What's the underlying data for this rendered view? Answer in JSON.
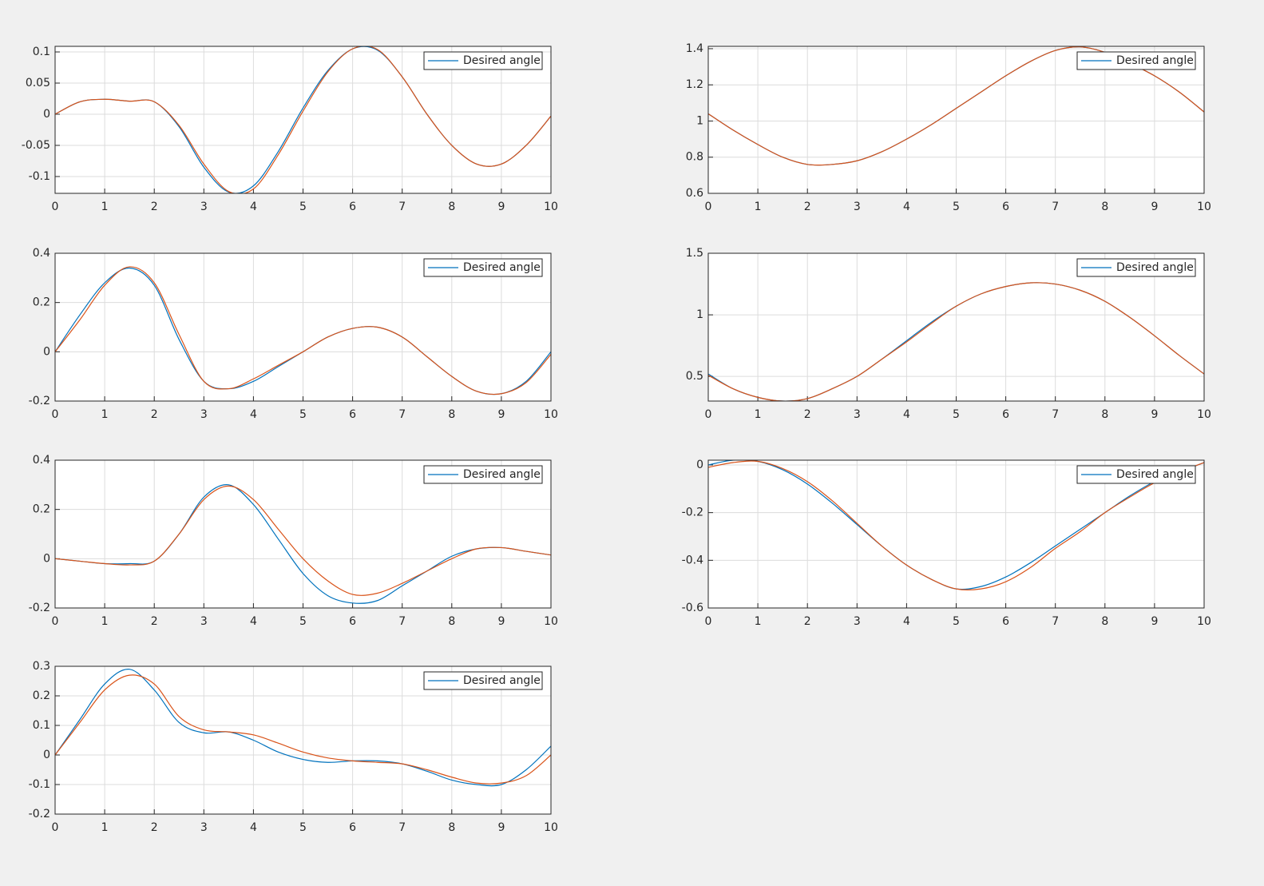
{
  "chart_data": [
    {
      "type": "line",
      "x": [
        0,
        0.5,
        1,
        1.5,
        2,
        2.5,
        3,
        3.5,
        4,
        4.5,
        5,
        5.5,
        6,
        6.5,
        7,
        7.5,
        8,
        8.5,
        9,
        9.5,
        10
      ],
      "xlim": [
        0,
        10
      ],
      "xticks": [
        0,
        1,
        2,
        3,
        4,
        5,
        6,
        7,
        8,
        9,
        10
      ],
      "ylim": [
        -0.127,
        0.109
      ],
      "yticks": [
        -0.1,
        -0.05,
        0,
        0.05,
        0.1
      ],
      "grid": true,
      "legend": "top-right",
      "series": [
        {
          "name": "Desired angle",
          "color": "#0072bd",
          "values": [
            0,
            0.02,
            0.024,
            0.021,
            0.02,
            -0.02,
            -0.085,
            -0.125,
            -0.115,
            -0.06,
            0.01,
            0.07,
            0.105,
            0.103,
            0.06,
            0.0,
            -0.05,
            -0.08,
            -0.08,
            -0.05,
            -0.003
          ]
        },
        {
          "color": "#d95319",
          "values": [
            0,
            0.02,
            0.024,
            0.021,
            0.02,
            -0.018,
            -0.08,
            -0.124,
            -0.12,
            -0.065,
            0.005,
            0.068,
            0.105,
            0.104,
            0.06,
            0.0,
            -0.05,
            -0.08,
            -0.08,
            -0.05,
            -0.003
          ]
        }
      ]
    },
    {
      "type": "line",
      "x": [
        0,
        0.5,
        1,
        1.5,
        2,
        2.5,
        3,
        3.5,
        4,
        4.5,
        5,
        5.5,
        6,
        6.5,
        7,
        7.5,
        8,
        8.5,
        9,
        9.5,
        10
      ],
      "xlim": [
        0,
        10
      ],
      "xticks": [
        0,
        1,
        2,
        3,
        4,
        5,
        6,
        7,
        8,
        9,
        10
      ],
      "ylim": [
        0.6,
        1.413
      ],
      "yticks": [
        0.6,
        0.8,
        1,
        1.2,
        1.4
      ],
      "grid": true,
      "legend": "top-right",
      "series": [
        {
          "name": "Desired angle",
          "color": "#0072bd",
          "values": [
            1.04,
            0.95,
            0.87,
            0.8,
            0.76,
            0.76,
            0.78,
            0.83,
            0.9,
            0.98,
            1.07,
            1.16,
            1.25,
            1.33,
            1.39,
            1.41,
            1.38,
            1.32,
            1.25,
            1.16,
            1.05
          ]
        },
        {
          "color": "#d95319",
          "values": [
            1.04,
            0.95,
            0.87,
            0.8,
            0.76,
            0.76,
            0.78,
            0.83,
            0.9,
            0.98,
            1.07,
            1.16,
            1.25,
            1.33,
            1.39,
            1.41,
            1.38,
            1.32,
            1.25,
            1.16,
            1.05
          ]
        }
      ]
    },
    {
      "type": "line",
      "x": [
        0,
        0.5,
        1,
        1.5,
        2,
        2.5,
        3,
        3.5,
        4,
        4.5,
        5,
        5.5,
        6,
        6.5,
        7,
        7.5,
        8,
        8.5,
        9,
        9.5,
        10
      ],
      "xlim": [
        0,
        10
      ],
      "xticks": [
        0,
        1,
        2,
        3,
        4,
        5,
        6,
        7,
        8,
        9,
        10
      ],
      "ylim": [
        -0.2,
        0.4
      ],
      "yticks": [
        -0.2,
        0,
        0.2,
        0.4
      ],
      "grid": true,
      "legend": "top-right",
      "series": [
        {
          "name": "Desired angle",
          "color": "#0072bd",
          "values": [
            0,
            0.15,
            0.28,
            0.34,
            0.27,
            0.05,
            -0.12,
            -0.15,
            -0.12,
            -0.06,
            0.0,
            0.06,
            0.095,
            0.1,
            0.06,
            -0.02,
            -0.1,
            -0.16,
            -0.17,
            -0.12,
            0
          ]
        },
        {
          "color": "#d95319",
          "values": [
            0,
            0.13,
            0.27,
            0.345,
            0.28,
            0.07,
            -0.12,
            -0.15,
            -0.11,
            -0.055,
            0.0,
            0.06,
            0.095,
            0.1,
            0.06,
            -0.02,
            -0.1,
            -0.16,
            -0.17,
            -0.125,
            -0.01
          ]
        }
      ]
    },
    {
      "type": "line",
      "x": [
        0,
        0.5,
        1,
        1.5,
        2,
        2.5,
        3,
        3.5,
        4,
        4.5,
        5,
        5.5,
        6,
        6.5,
        7,
        7.5,
        8,
        8.5,
        9,
        9.5,
        10
      ],
      "xlim": [
        0,
        10
      ],
      "xticks": [
        0,
        1,
        2,
        3,
        4,
        5,
        6,
        7,
        8,
        9,
        10
      ],
      "ylim": [
        0.3,
        1.5
      ],
      "yticks": [
        0.5,
        1,
        1.5
      ],
      "grid": true,
      "legend": "top-right",
      "series": [
        {
          "name": "Desired angle",
          "color": "#0072bd",
          "values": [
            0.52,
            0.4,
            0.33,
            0.3,
            0.32,
            0.4,
            0.5,
            0.64,
            0.79,
            0.94,
            1.07,
            1.17,
            1.23,
            1.26,
            1.25,
            1.2,
            1.11,
            0.98,
            0.83,
            0.67,
            0.52
          ]
        },
        {
          "color": "#d95319",
          "values": [
            0.51,
            0.4,
            0.33,
            0.3,
            0.32,
            0.4,
            0.5,
            0.64,
            0.78,
            0.93,
            1.07,
            1.17,
            1.23,
            1.26,
            1.25,
            1.2,
            1.11,
            0.98,
            0.83,
            0.67,
            0.52
          ]
        }
      ]
    },
    {
      "type": "line",
      "x": [
        0,
        0.5,
        1,
        1.5,
        2,
        2.5,
        3,
        3.5,
        4,
        4.5,
        5,
        5.5,
        6,
        6.5,
        7,
        7.5,
        8,
        8.5,
        9,
        9.5,
        10
      ],
      "xlim": [
        0,
        10
      ],
      "xticks": [
        0,
        1,
        2,
        3,
        4,
        5,
        6,
        7,
        8,
        9,
        10
      ],
      "ylim": [
        -0.2,
        0.4
      ],
      "yticks": [
        -0.2,
        0,
        0.2,
        0.4
      ],
      "grid": true,
      "legend": "top-right",
      "series": [
        {
          "name": "Desired angle",
          "color": "#0072bd",
          "values": [
            0,
            -0.01,
            -0.02,
            -0.02,
            -0.01,
            0.1,
            0.25,
            0.3,
            0.22,
            0.08,
            -0.06,
            -0.15,
            -0.18,
            -0.17,
            -0.11,
            -0.05,
            0.01,
            0.04,
            0.045,
            0.03,
            0.015
          ]
        },
        {
          "color": "#d95319",
          "values": [
            0,
            -0.01,
            -0.02,
            -0.025,
            -0.01,
            0.1,
            0.24,
            0.295,
            0.24,
            0.12,
            0.0,
            -0.09,
            -0.145,
            -0.14,
            -0.1,
            -0.05,
            0.0,
            0.04,
            0.045,
            0.03,
            0.015
          ]
        }
      ]
    },
    {
      "type": "line",
      "x": [
        0,
        0.5,
        1,
        1.5,
        2,
        2.5,
        3,
        3.5,
        4,
        4.5,
        5,
        5.5,
        6,
        6.5,
        7,
        7.5,
        8,
        8.5,
        9,
        9.5,
        10
      ],
      "xlim": [
        0,
        10
      ],
      "xticks": [
        0,
        1,
        2,
        3,
        4,
        5,
        6,
        7,
        8,
        9,
        10
      ],
      "ylim": [
        -0.6,
        0.02
      ],
      "yticks": [
        -0.6,
        -0.4,
        -0.2,
        0
      ],
      "grid": true,
      "legend": "top-right",
      "series": [
        {
          "name": "Desired angle",
          "color": "#0072bd",
          "values": [
            0,
            0.02,
            0.015,
            -0.02,
            -0.08,
            -0.16,
            -0.25,
            -0.34,
            -0.42,
            -0.48,
            -0.52,
            -0.51,
            -0.47,
            -0.41,
            -0.34,
            -0.27,
            -0.2,
            -0.13,
            -0.07,
            -0.03,
            0.01
          ]
        },
        {
          "color": "#d95319",
          "values": [
            -0.01,
            0.01,
            0.015,
            -0.015,
            -0.07,
            -0.15,
            -0.245,
            -0.34,
            -0.42,
            -0.48,
            -0.52,
            -0.52,
            -0.49,
            -0.43,
            -0.35,
            -0.28,
            -0.2,
            -0.135,
            -0.075,
            -0.03,
            0.01
          ]
        }
      ]
    },
    {
      "type": "line",
      "x": [
        0,
        0.5,
        1,
        1.5,
        2,
        2.5,
        3,
        3.5,
        4,
        4.5,
        5,
        5.5,
        6,
        6.5,
        7,
        7.5,
        8,
        8.5,
        9,
        9.5,
        10
      ],
      "xlim": [
        0,
        10
      ],
      "xticks": [
        0,
        1,
        2,
        3,
        4,
        5,
        6,
        7,
        8,
        9,
        10
      ],
      "ylim": [
        -0.2,
        0.3
      ],
      "yticks": [
        -0.2,
        -0.1,
        0,
        0.1,
        0.2,
        0.3
      ],
      "grid": true,
      "legend": "top-right",
      "series": [
        {
          "name": "Desired angle",
          "color": "#0072bd",
          "values": [
            0,
            0.12,
            0.24,
            0.29,
            0.22,
            0.11,
            0.075,
            0.078,
            0.05,
            0.01,
            -0.015,
            -0.025,
            -0.02,
            -0.02,
            -0.03,
            -0.055,
            -0.085,
            -0.1,
            -0.1,
            -0.05,
            0.03
          ]
        },
        {
          "color": "#d95319",
          "values": [
            0,
            0.11,
            0.22,
            0.27,
            0.24,
            0.13,
            0.085,
            0.078,
            0.068,
            0.04,
            0.01,
            -0.01,
            -0.02,
            -0.025,
            -0.03,
            -0.05,
            -0.075,
            -0.095,
            -0.095,
            -0.07,
            0
          ]
        }
      ]
    }
  ]
}
